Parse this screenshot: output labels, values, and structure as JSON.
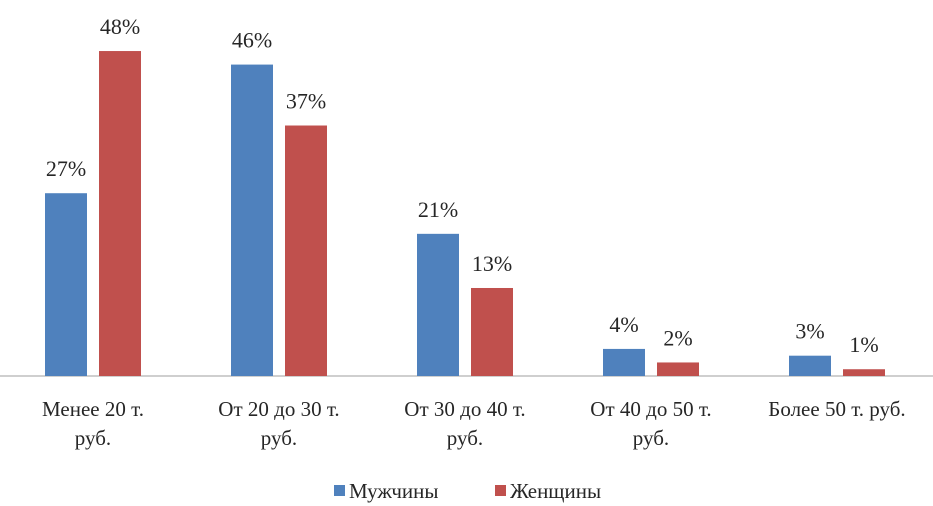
{
  "chart_data": {
    "type": "bar",
    "categories": [
      [
        "Менее 20 т.",
        "руб."
      ],
      [
        "От 20 до 30 т.",
        "руб."
      ],
      [
        "От 30 до 40 т.",
        "руб."
      ],
      [
        "От 40 до 50 т.",
        "руб."
      ],
      [
        "Более 50 т. руб."
      ]
    ],
    "series": [
      {
        "name": "Мужчины",
        "values": [
          27,
          46,
          21,
          4,
          3
        ],
        "labels": [
          "27%",
          "46%",
          "21%",
          "4%",
          "3%"
        ],
        "color": "#4f81bd"
      },
      {
        "name": "Женщины",
        "values": [
          48,
          37,
          13,
          2,
          1
        ],
        "labels": [
          "48%",
          "37%",
          "13%",
          "2%",
          "1%"
        ],
        "color": "#c0504d"
      }
    ],
    "title": "",
    "xlabel": "",
    "ylabel": "",
    "ylim": [
      0,
      50
    ],
    "grid": false,
    "legend": "bottom",
    "axis_color": "#bfbfbf"
  }
}
